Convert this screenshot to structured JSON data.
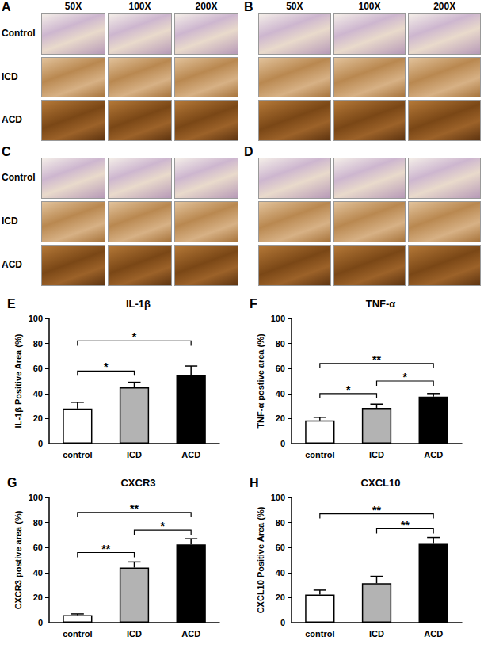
{
  "image_panels": {
    "labels": [
      "A",
      "B",
      "C",
      "D"
    ],
    "magnifications": [
      "50X",
      "100X",
      "200X"
    ],
    "groups": [
      "Control",
      "ICD",
      "ACD"
    ]
  },
  "chart_data": [
    {
      "type": "bar",
      "panel_label": "E",
      "title": "IL-1β",
      "ylabel": "IL-1β Positive Area (%)",
      "categories": [
        "control",
        "ICD",
        "ACD"
      ],
      "values": [
        28,
        45,
        55
      ],
      "errors": [
        5,
        4,
        7
      ],
      "colors": [
        "#ffffff",
        "#b3b3b3",
        "#000000"
      ],
      "ylim": [
        0,
        100
      ],
      "yticks": [
        0,
        20,
        40,
        60,
        80,
        100
      ],
      "significance": [
        {
          "from": "control",
          "to": "ICD",
          "y": 58,
          "label": "*"
        },
        {
          "from": "control",
          "to": "ACD",
          "y": 82,
          "label": "*"
        }
      ]
    },
    {
      "type": "bar",
      "panel_label": "F",
      "title": "TNF-α",
      "ylabel": "TNF-α postive area (%)",
      "categories": [
        "control",
        "ICD",
        "ACD"
      ],
      "values": [
        18.5,
        28.5,
        37.5
      ],
      "errors": [
        2.5,
        3,
        2.5
      ],
      "colors": [
        "#ffffff",
        "#b3b3b3",
        "#000000"
      ],
      "ylim": [
        0,
        100
      ],
      "yticks": [
        0,
        20,
        40,
        60,
        80,
        100
      ],
      "significance": [
        {
          "from": "control",
          "to": "ICD",
          "y": 40,
          "label": "*"
        },
        {
          "from": "ICD",
          "to": "ACD",
          "y": 50,
          "label": "*"
        },
        {
          "from": "control",
          "to": "ACD",
          "y": 64,
          "label": "**"
        }
      ]
    },
    {
      "type": "bar",
      "panel_label": "G",
      "title": "CXCR3",
      "ylabel": "CXCR3 postive area (%)",
      "categories": [
        "control",
        "ICD",
        "ACD"
      ],
      "values": [
        6,
        44,
        62.5
      ],
      "errors": [
        1,
        4.5,
        4.5
      ],
      "colors": [
        "#ffffff",
        "#b3b3b3",
        "#000000"
      ],
      "ylim": [
        0,
        100
      ],
      "yticks": [
        0,
        20,
        40,
        60,
        80,
        100
      ],
      "significance": [
        {
          "from": "control",
          "to": "ICD",
          "y": 56,
          "label": "**"
        },
        {
          "from": "ICD",
          "to": "ACD",
          "y": 74,
          "label": "*"
        },
        {
          "from": "control",
          "to": "ACD",
          "y": 88,
          "label": "**"
        }
      ]
    },
    {
      "type": "bar",
      "panel_label": "H",
      "title": "CXCL10",
      "ylabel": "CXCL10 Positive Area (%)",
      "categories": [
        "control",
        "ICD",
        "ACD"
      ],
      "values": [
        22.5,
        31.5,
        63
      ],
      "errors": [
        3.5,
        5.5,
        5
      ],
      "colors": [
        "#ffffff",
        "#b3b3b3",
        "#000000"
      ],
      "ylim": [
        0,
        100
      ],
      "yticks": [
        0,
        20,
        40,
        60,
        80,
        100
      ],
      "significance": [
        {
          "from": "ICD",
          "to": "ACD",
          "y": 75,
          "label": "**"
        },
        {
          "from": "control",
          "to": "ACD",
          "y": 87,
          "label": "**"
        }
      ]
    }
  ]
}
